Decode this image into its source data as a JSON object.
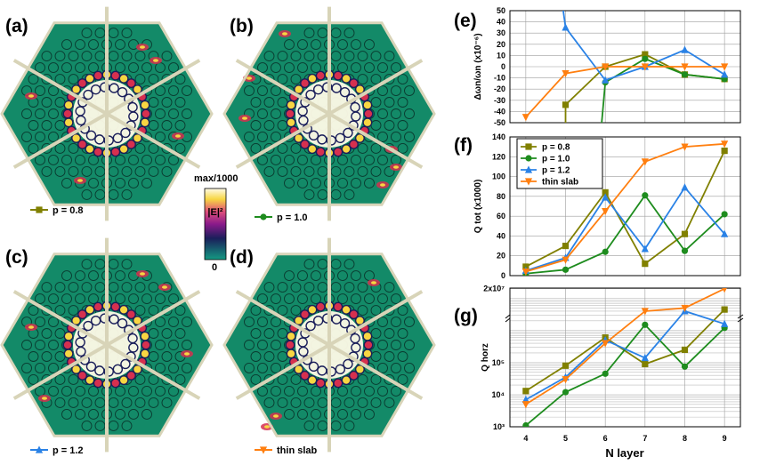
{
  "figure": {
    "panel_labels": [
      "(a)",
      "(b)",
      "(c)",
      "(d)",
      "(e)",
      "(f)",
      "(g)"
    ],
    "map_labels": [
      "p = 0.8",
      "p = 1.0",
      "p = 1.2",
      "thin slab"
    ],
    "colorbar": {
      "max_label": "max/1000",
      "min_label": "0",
      "quantity": "|E|²"
    },
    "xlabel": "N layer"
  },
  "colors": {
    "p08": "#808000",
    "p10": "#1e8c1e",
    "p12": "#2a82e6",
    "thin": "#ff7f10",
    "field_bg": "#138a68",
    "frame": "#d8d4b8"
  },
  "chart_data": [
    {
      "id": "e",
      "type": "line",
      "ylabel": "Δωn/ωn (x10⁻⁶)",
      "ylim": [
        -50,
        50
      ],
      "yticks": [
        50,
        40,
        30,
        20,
        10,
        0,
        -10,
        -20,
        -30,
        -40,
        -50
      ],
      "x": [
        4,
        5,
        6,
        7,
        8,
        9
      ],
      "series": [
        {
          "name": "p = 0.8",
          "color_key": "p08",
          "marker": "square",
          "values": [
            null,
            -34,
            0,
            11,
            -7,
            -11
          ]
        },
        {
          "name": "p = 1.0",
          "color_key": "p10",
          "marker": "circle",
          "values": [
            null,
            null,
            -14,
            7,
            -7,
            -11
          ]
        },
        {
          "name": "p = 1.2",
          "color_key": "p12",
          "marker": "triangle-up",
          "values": [
            null,
            35,
            -12,
            0,
            15,
            -7
          ]
        },
        {
          "name": "thin slab",
          "color_key": "thin",
          "marker": "triangle-down",
          "values": [
            -45,
            -6,
            0,
            0,
            0,
            0
          ]
        }
      ]
    },
    {
      "id": "f",
      "type": "line",
      "ylabel": "Q tot (x1000)",
      "ylim": [
        0,
        140
      ],
      "yticks": [
        0,
        20,
        40,
        60,
        80,
        100,
        120,
        140
      ],
      "x": [
        4,
        5,
        6,
        7,
        8,
        9
      ],
      "legend": [
        "p = 0.8",
        "p = 1.0",
        "p = 1.2",
        "thin slab"
      ],
      "series": [
        {
          "name": "p = 0.8",
          "color_key": "p08",
          "marker": "square",
          "values": [
            9,
            30,
            84,
            12,
            42,
            126
          ]
        },
        {
          "name": "p = 1.0",
          "color_key": "p10",
          "marker": "circle",
          "values": [
            2,
            6,
            24,
            81,
            25,
            62
          ]
        },
        {
          "name": "p = 1.2",
          "color_key": "p12",
          "marker": "triangle-up",
          "values": [
            5,
            18,
            79,
            27,
            89,
            42
          ]
        },
        {
          "name": "thin slab",
          "color_key": "thin",
          "marker": "triangle-down",
          "values": [
            4,
            16,
            65,
            115,
            130,
            133
          ]
        }
      ]
    },
    {
      "id": "g",
      "type": "line",
      "scale": "log",
      "ylabel": "Q horz",
      "ylim": [
        1000,
        20000000
      ],
      "yticks": [
        "10³",
        "10⁴",
        "10⁵",
        "2x10⁷"
      ],
      "x": [
        4,
        5,
        6,
        7,
        8,
        9
      ],
      "series": [
        {
          "name": "p = 0.8",
          "color_key": "p08",
          "marker": "square",
          "values": [
            13000,
            80000,
            600000,
            90000,
            250000,
            4500000
          ]
        },
        {
          "name": "p = 1.0",
          "color_key": "p10",
          "marker": "circle",
          "values": [
            1100,
            12000,
            45000,
            1500000,
            75000,
            1200000
          ]
        },
        {
          "name": "p = 1.2",
          "color_key": "p12",
          "marker": "triangle-up",
          "values": [
            7000,
            35000,
            500000,
            140000,
            4000000,
            1600000
          ]
        },
        {
          "name": "thin slab",
          "color_key": "thin",
          "marker": "triangle-down",
          "values": [
            5000,
            30000,
            400000,
            4000000,
            5000000,
            20000000
          ]
        }
      ]
    }
  ]
}
